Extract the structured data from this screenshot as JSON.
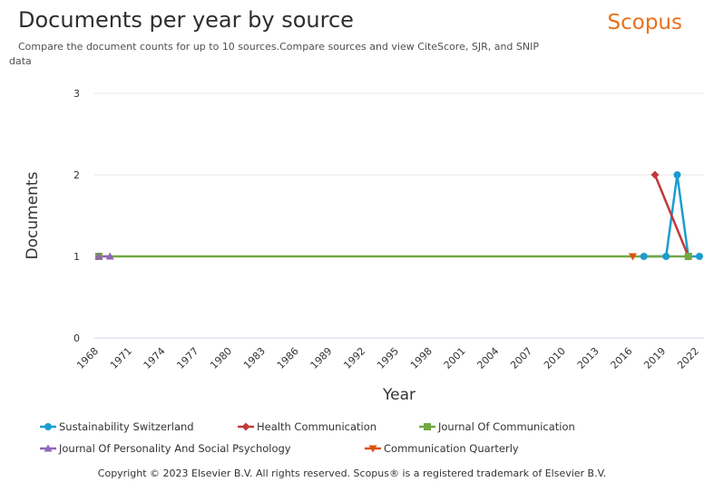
{
  "header": {
    "title": "Documents per year by source",
    "subtitle": "Compare the document counts for up to 10 sources.Compare sources and view CiteScore, SJR, and SNIP data",
    "brand": "Scopus"
  },
  "chart_data": {
    "type": "line",
    "ylabel": "Documents",
    "xlabel": "Year",
    "xlim": [
      1968,
      2022
    ],
    "ylim": [
      0,
      3
    ],
    "x_ticks": [
      1968,
      1971,
      1974,
      1977,
      1980,
      1983,
      1986,
      1989,
      1992,
      1995,
      1998,
      2001,
      2004,
      2007,
      2010,
      2013,
      2016,
      2019,
      2022
    ],
    "y_ticks": [
      0,
      1,
      2,
      3
    ],
    "grid": "horizontal",
    "legend_position": "bottom",
    "series": [
      {
        "name": "Sustainability Switzerland",
        "color": "#1b9dd0",
        "marker": "circle",
        "points": [
          [
            2017,
            1
          ],
          [
            2019,
            1
          ],
          [
            2020,
            2
          ],
          [
            2021,
            1
          ],
          [
            2022,
            1
          ]
        ]
      },
      {
        "name": "Health Communication",
        "color": "#c0393b",
        "marker": "diamond",
        "points": [
          [
            2018,
            2
          ],
          [
            2021,
            1
          ]
        ]
      },
      {
        "name": "Journal Of Communication",
        "color": "#72a844",
        "marker": "square",
        "points": [
          [
            1968,
            1
          ],
          [
            2021,
            1
          ]
        ]
      },
      {
        "name": "Journal Of Personality And Social Psychology",
        "color": "#9065b8",
        "marker": "triangle-up",
        "points": [
          [
            1968,
            1
          ],
          [
            1969,
            1
          ]
        ]
      },
      {
        "name": "Communication Quarterly",
        "color": "#dd5111",
        "marker": "triangle-down",
        "points": [
          [
            2016,
            1
          ]
        ]
      }
    ]
  },
  "footer": {
    "copyright": "Copyright © 2023 Elsevier B.V. All rights reserved. Scopus® is a registered trademark of Elsevier B.V."
  }
}
